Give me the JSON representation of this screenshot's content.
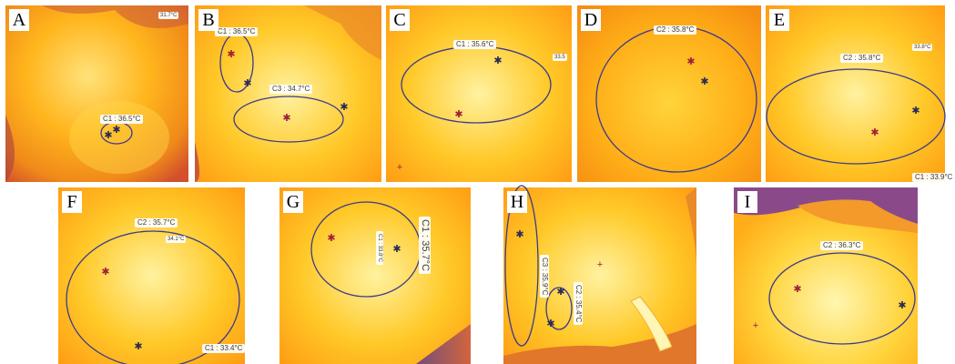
{
  "panels": [
    {
      "letter": "A",
      "labels": {
        "c1": "C1 : 36.5°C",
        "corner": "31.7°C"
      }
    },
    {
      "letter": "B",
      "labels": {
        "c1": "C1 : 36.5°C",
        "c3": "C3 : 34.7°C"
      }
    },
    {
      "letter": "C",
      "labels": {
        "c1": "C1 : 35.6°C",
        "side": "33.5"
      }
    },
    {
      "letter": "D",
      "labels": {
        "c2": "C2 : 35.8°C"
      }
    },
    {
      "letter": "E",
      "labels": {
        "c2": "C2 : 35.8°C",
        "corner": "33.8°C",
        "c1": "C1 : 33.9°C"
      }
    },
    {
      "letter": "F",
      "labels": {
        "c2": "C2 : 35.7°C",
        "mid": "34.1°C",
        "c1": "C1 : 33.4°C"
      }
    },
    {
      "letter": "G",
      "labels": {
        "c1": "C1 : 35.7°C",
        "c1b": "C1 : 33.8°C"
      }
    },
    {
      "letter": "H",
      "labels": {
        "c3": "C3 : 35.9°C",
        "c2": "C2 : 35.4°C"
      }
    },
    {
      "letter": "I",
      "labels": {
        "c2": "C2 : 36.3°C"
      }
    }
  ],
  "palette": {
    "hot": "#fff7a6",
    "warm": "#ffcf2b",
    "mid": "#ffa514",
    "cool": "#e96a2a",
    "cold": "#7b3f8f",
    "ellipse": "#3b3a8c"
  }
}
